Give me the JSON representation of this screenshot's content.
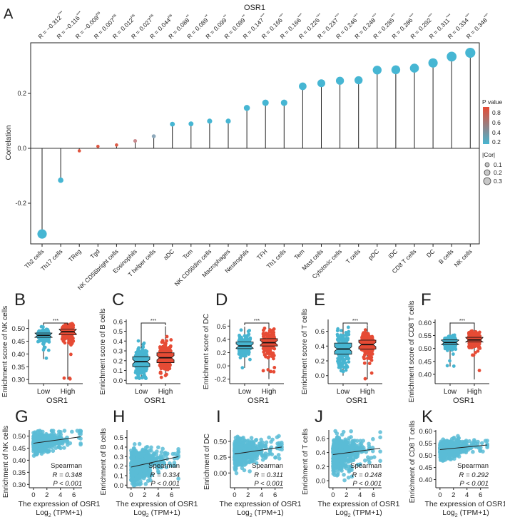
{
  "panel_A": {
    "letter": "A",
    "title": "OSR1",
    "ylabel": "Correlation",
    "legend": {
      "p_title": "P value",
      "p_ticks": [
        "0.8",
        "0.6",
        "0.4",
        "0.2"
      ],
      "gradient": [
        "#e64b35",
        "#47b5d1"
      ],
      "cor_title": "|Cor|",
      "cor_ticks": [
        "0.1",
        "0.2",
        "0.3"
      ]
    }
  },
  "chart_data": [
    {
      "type": "lollipop",
      "title": "OSR1",
      "ylabel": "Correlation",
      "yticks": [
        "-0.2",
        "0.0",
        "0.2"
      ],
      "ytick_values": [
        -0.2,
        0,
        0.2
      ],
      "ylim": [
        -0.348,
        0.384
      ],
      "grid": false,
      "legend_position": "right",
      "categories": [
        "Th2 cells",
        "Th17 cells",
        "TReg",
        "Tgd",
        "NK CD56bright cells",
        "Eosinophils",
        "T helper cells",
        "aDC",
        "Tcm",
        "NK CD56dim cells",
        "Macrophages",
        "Neutrophils",
        "TFH",
        "Th1 cells",
        "Tem",
        "Mast cells",
        "Cytotoxic cells",
        "T cells",
        "pDC",
        "iDC",
        "CD8 T cells",
        "DC",
        "B cells",
        "NK cells"
      ],
      "values": [
        -0.312,
        -0.116,
        -0.009,
        0.007,
        0.012,
        0.027,
        0.044,
        0.088,
        0.089,
        0.099,
        0.099,
        0.147,
        0.166,
        0.166,
        0.226,
        0.237,
        0.246,
        0.248,
        0.285,
        0.286,
        0.292,
        0.311,
        0.334,
        0.348
      ],
      "r_labels": [
        "R = −0.312",
        "R = −0.116",
        "R = −0.009",
        "R = 0.007",
        "R = 0.012",
        "R = 0.027",
        "R = 0.044",
        "R = 0.088",
        "R = 0.089",
        "R = 0.099",
        "R = 0.099",
        "R = 0.147",
        "R = 0.166",
        "R = 0.166",
        "R = 0.226",
        "R = 0.237",
        "R = 0.246",
        "R = 0.248",
        "R = 0.285",
        "R = 0.286",
        "R = 0.292",
        "R = 0.311",
        "R = 0.334",
        "R = 0.348"
      ],
      "significance": [
        "***",
        "***",
        "ns",
        "ns",
        "ns",
        "ns",
        "ns",
        "**",
        "**",
        "**",
        "**",
        "***",
        "***",
        "***",
        "***",
        "***",
        "***",
        "***",
        "***",
        "***",
        "***",
        "***",
        "***",
        "***"
      ],
      "point_colors": [
        "#46b6d3",
        "#46b6d3",
        "#e0553f",
        "#df5640",
        "#dc5a45",
        "#c98a8e",
        "#8ea9bb",
        "#46b6d3",
        "#46b6d3",
        "#46b6d3",
        "#46b6d3",
        "#46b6d3",
        "#46b6d3",
        "#46b6d3",
        "#46b6d3",
        "#46b6d3",
        "#46b6d3",
        "#46b6d3",
        "#46b6d3",
        "#46b6d3",
        "#46b6d3",
        "#46b6d3",
        "#46b6d3",
        "#46b6d3"
      ]
    },
    {
      "type": "box",
      "letter": "B",
      "ylabel": "Enrichment score of NK cells",
      "xlabel": "OSR1",
      "groups": [
        "Low",
        "High"
      ],
      "group_colors": [
        "#47b5d1",
        "#e64b35"
      ],
      "significance": "***",
      "yticks": [
        "0.30",
        "0.35",
        "0.40",
        "0.45",
        "0.50"
      ],
      "ytick_values": [
        0.3,
        0.35,
        0.4,
        0.45,
        0.5
      ],
      "ylim": [
        0.295,
        0.535
      ],
      "stats": [
        {
          "min": 0.38,
          "q1": 0.465,
          "median": 0.473,
          "q3": 0.482,
          "max": 0.52
        },
        {
          "min": 0.3,
          "q1": 0.475,
          "median": 0.487,
          "q3": 0.497,
          "max": 0.52
        }
      ]
    },
    {
      "type": "box",
      "letter": "C",
      "ylabel": "Enrichment score of B cells",
      "xlabel": "OSR1",
      "groups": [
        "Low",
        "High"
      ],
      "group_colors": [
        "#47b5d1",
        "#e64b35"
      ],
      "significance": "***",
      "yticks": [
        "0.0",
        "0.1",
        "0.2",
        "0.3",
        "0.4",
        "0.5",
        "0.6"
      ],
      "ytick_values": [
        0,
        0.1,
        0.2,
        0.3,
        0.4,
        0.5,
        0.6
      ],
      "ylim": [
        -0.005,
        0.62
      ],
      "stats": [
        {
          "min": 0.02,
          "q1": 0.14,
          "median": 0.19,
          "q3": 0.24,
          "max": 0.57
        },
        {
          "min": 0.03,
          "q1": 0.18,
          "median": 0.23,
          "q3": 0.28,
          "max": 0.55
        }
      ]
    },
    {
      "type": "box",
      "letter": "D",
      "ylabel": "Enrichment score of DC",
      "xlabel": "OSR1",
      "groups": [
        "Low",
        "High"
      ],
      "group_colors": [
        "#47b5d1",
        "#e64b35"
      ],
      "significance": "***",
      "yticks": [
        "-0.2",
        "0.0",
        "0.2",
        "0.4",
        "0.6"
      ],
      "ytick_values": [
        -0.2,
        0,
        0.2,
        0.4,
        0.6
      ],
      "ylim": [
        -0.225,
        0.7
      ],
      "stats": [
        {
          "min": -0.03,
          "q1": 0.26,
          "median": 0.3,
          "q3": 0.36,
          "max": 0.59
        },
        {
          "min": -0.2,
          "q1": 0.3,
          "median": 0.35,
          "q3": 0.41,
          "max": 0.65
        }
      ]
    },
    {
      "type": "box",
      "letter": "E",
      "ylabel": "Enrichment score of T cells",
      "xlabel": "OSR1",
      "groups": [
        "Low",
        "High"
      ],
      "group_colors": [
        "#47b5d1",
        "#e64b35"
      ],
      "significance": "***",
      "yticks": [
        "0.0",
        "0.2",
        "0.4",
        "0.6"
      ],
      "ytick_values": [
        0,
        0.2,
        0.4,
        0.6
      ],
      "ylim": [
        -0.07,
        0.76
      ],
      "stats": [
        {
          "min": 0.0,
          "q1": 0.29,
          "median": 0.36,
          "q3": 0.44,
          "max": 0.7
        },
        {
          "min": -0.05,
          "q1": 0.36,
          "median": 0.42,
          "q3": 0.48,
          "max": 0.68
        }
      ]
    },
    {
      "type": "box",
      "letter": "F",
      "ylabel": "Enrichment score of CD8 T cells",
      "xlabel": "OSR1",
      "groups": [
        "Low",
        "High"
      ],
      "group_colors": [
        "#47b5d1",
        "#e64b35"
      ],
      "significance": "***",
      "yticks": [
        "0.40",
        "0.45",
        "0.50",
        "0.55",
        "0.60"
      ],
      "ytick_values": [
        0.4,
        0.45,
        0.5,
        0.55,
        0.6
      ],
      "ylim": [
        0.375,
        0.612
      ],
      "stats": [
        {
          "min": 0.43,
          "q1": 0.515,
          "median": 0.523,
          "q3": 0.533,
          "max": 0.6
        },
        {
          "min": 0.38,
          "q1": 0.525,
          "median": 0.533,
          "q3": 0.543,
          "max": 0.59
        }
      ]
    },
    {
      "type": "scatter",
      "letter": "G",
      "ylabel": "Enrichment of NK cells",
      "xlabel": "The expression of OSR1",
      "xlabel2": {
        "base": "Log",
        "sub": "2",
        "rest": " (TPM+1)"
      },
      "xticks": [
        "0",
        "2",
        "4",
        "6"
      ],
      "xtick_values": [
        0,
        2,
        4,
        6
      ],
      "xlim": [
        -0.3,
        7.2
      ],
      "yticks": [
        "0.30",
        "0.35",
        "0.40",
        "0.45",
        "0.50"
      ],
      "ytick_values": [
        0.3,
        0.35,
        0.4,
        0.45,
        0.5
      ],
      "ylim": [
        0.295,
        0.525
      ],
      "fit": {
        "x": [
          0,
          7
        ],
        "y": [
          0.47,
          0.497
        ]
      },
      "spread": 0.018,
      "method": "Spearman",
      "r_label": "R = 0.348",
      "p_label": "P < 0.001",
      "color": "#5bbcd6"
    },
    {
      "type": "scatter",
      "letter": "H",
      "ylabel": "Enrichment of B cells",
      "xlabel": "The expression of OSR1",
      "xlabel2": {
        "base": "Log",
        "sub": "2",
        "rest": " (TPM+1)"
      },
      "xticks": [
        "0",
        "2",
        "4",
        "6"
      ],
      "xtick_values": [
        0,
        2,
        4,
        6
      ],
      "xlim": [
        -0.3,
        7.2
      ],
      "yticks": [
        "0.0",
        "0.1",
        "0.2",
        "0.3",
        "0.4",
        "0.5"
      ],
      "ytick_values": [
        0,
        0.1,
        0.2,
        0.3,
        0.4,
        0.5
      ],
      "ylim": [
        -0.005,
        0.58
      ],
      "fit": {
        "x": [
          0,
          7
        ],
        "y": [
          0.19,
          0.3
        ]
      },
      "spread": 0.08,
      "method": "Spearman",
      "r_label": "R = 0.334",
      "p_label": "P < 0.001",
      "color": "#5bbcd6"
    },
    {
      "type": "scatter",
      "letter": "I",
      "ylabel": "Enrichment of DC",
      "xlabel": "The expression of OSR1",
      "xlabel2": {
        "base": "Log",
        "sub": "2",
        "rest": " (TPM+1)"
      },
      "xticks": [
        "0",
        "2",
        "4",
        "6"
      ],
      "xtick_values": [
        0,
        2,
        4,
        6
      ],
      "xlim": [
        -0.3,
        7.2
      ],
      "yticks": [
        "0.00",
        "0.25",
        "0.50"
      ],
      "ytick_values": [
        0,
        0.25,
        0.5
      ],
      "ylim": [
        -0.2,
        0.68
      ],
      "fit": {
        "x": [
          0,
          7
        ],
        "y": [
          0.3,
          0.41
        ]
      },
      "spread": 0.09,
      "method": "Spearman",
      "r_label": "R = 0.311",
      "p_label": "P < 0.001",
      "color": "#5bbcd6"
    },
    {
      "type": "scatter",
      "letter": "J",
      "ylabel": "Enrichment of T cells",
      "xlabel": "The expression of OSR1",
      "xlabel2": {
        "base": "Log",
        "sub": "2",
        "rest": " (TPM+1)"
      },
      "xticks": [
        "0",
        "2",
        "4",
        "6"
      ],
      "xtick_values": [
        0,
        2,
        4,
        6
      ],
      "xlim": [
        -0.3,
        7.2
      ],
      "yticks": [
        "0.0",
        "0.2",
        "0.4",
        "0.6"
      ],
      "ytick_values": [
        0,
        0.2,
        0.4,
        0.6
      ],
      "ylim": [
        -0.07,
        0.72
      ],
      "fit": {
        "x": [
          0,
          7
        ],
        "y": [
          0.37,
          0.46
        ]
      },
      "spread": 0.11,
      "method": "Spearman",
      "r_label": "R = 0.248",
      "p_label": "P < 0.001",
      "color": "#5bbcd6"
    },
    {
      "type": "scatter",
      "letter": "K",
      "ylabel": "Enrichment of CD8 T cells",
      "xlabel": "The expression of OSR1",
      "xlabel2": {
        "base": "Log",
        "sub": "2",
        "rest": " (TPM+1)"
      },
      "xticks": [
        "0",
        "2",
        "4",
        "6"
      ],
      "xtick_values": [
        0,
        2,
        4,
        6
      ],
      "xlim": [
        -0.3,
        7.2
      ],
      "yticks": [
        "0.40",
        "0.45",
        "0.50",
        "0.55",
        "0.60"
      ],
      "ytick_values": [
        0.4,
        0.45,
        0.5,
        0.55,
        0.6
      ],
      "ylim": [
        0.375,
        0.605
      ],
      "fit": {
        "x": [
          0,
          7
        ],
        "y": [
          0.524,
          0.543
        ]
      },
      "spread": 0.016,
      "method": "Spearman",
      "r_label": "R = 0.292",
      "p_label": "P < 0.001",
      "color": "#5bbcd6"
    }
  ]
}
